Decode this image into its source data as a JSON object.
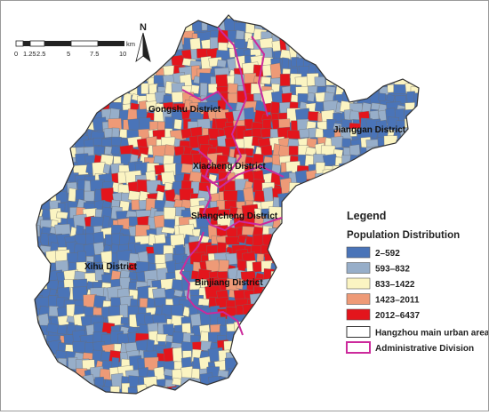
{
  "colors": {
    "class1": "#4a74b8",
    "class2": "#97aec9",
    "class3": "#fbf4c2",
    "class4": "#ee9a77",
    "class5": "#e3151c",
    "urban_outline": "#333333",
    "admin_division": "#cc2a9c"
  },
  "north_arrow": {
    "label": "N",
    "icon": "north-arrow-icon"
  },
  "scale_bar": {
    "labels": [
      "0",
      "1.25",
      "2.5",
      "5",
      "7.5",
      "10"
    ],
    "unit": "km"
  },
  "districts": {
    "gongshu": "Gongshu District",
    "jianggan": "Jianggan District",
    "xiacheng": "Xiacheng District",
    "shangcheng": "Shangcheng District",
    "xihu": "Xihu District",
    "binjiang": "Binjiang District"
  },
  "legend": {
    "title": "Legend",
    "subtitle": "Population Distribution",
    "classes": [
      {
        "label": "2–592",
        "color": "#4a74b8"
      },
      {
        "label": "593–832",
        "color": "#97aec9"
      },
      {
        "label": "833–1422",
        "color": "#fbf4c2"
      },
      {
        "label": "1423–2011",
        "color": "#ee9a77"
      },
      {
        "label": "2012–6437",
        "color": "#e3151c"
      }
    ],
    "outline_items": [
      {
        "label": "Hangzhou main urban area",
        "color": "#333333"
      },
      {
        "label": "Administrative Division",
        "color": "#cc2a9c"
      }
    ]
  }
}
